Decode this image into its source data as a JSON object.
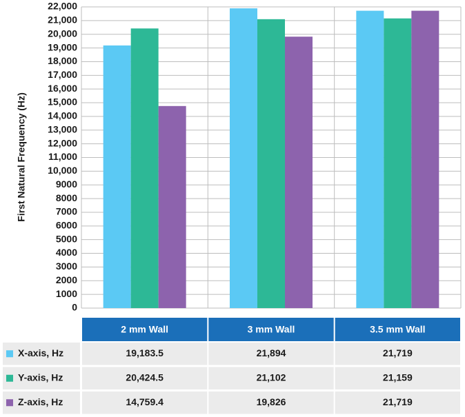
{
  "chart_data": {
    "type": "bar",
    "y_label": "First Natural Frequency (Hz)",
    "categories": [
      "2 mm Wall",
      "3 mm Wall",
      "3.5 mm Wall"
    ],
    "series": [
      {
        "name": "X-axis, Hz",
        "color": "#5bc9f4",
        "values": [
          19183.5,
          21894,
          21719
        ],
        "value_labels": [
          "19,183.5",
          "21,894",
          "21,719"
        ]
      },
      {
        "name": "Y-axis, Hz",
        "color": "#2db896",
        "values": [
          20424.5,
          21102,
          21159
        ],
        "value_labels": [
          "20,424.5",
          "21,102",
          "21,159"
        ]
      },
      {
        "name": "Z-axis, Hz",
        "color": "#8d63ad",
        "values": [
          14759.4,
          19826,
          21719
        ],
        "value_labels": [
          "14,759.4",
          "19,826",
          "21,719"
        ]
      }
    ],
    "ylim": [
      0,
      22000
    ],
    "yticks": [
      0,
      1000,
      2000,
      3000,
      4000,
      5000,
      6000,
      7000,
      8000,
      9000,
      {
        "value": 10000,
        "label": "10,000"
      },
      {
        "value": 11000,
        "label": "11,000"
      },
      {
        "value": 12000,
        "label": "12,000"
      },
      {
        "value": 13000,
        "label": "13,000"
      },
      {
        "value": 14000,
        "label": "14,000"
      },
      {
        "value": 15000,
        "label": "15,000"
      },
      {
        "value": 16000,
        "label": "16,000"
      },
      {
        "value": 17000,
        "label": "17,000"
      },
      {
        "value": 18000,
        "label": "18,000"
      },
      {
        "value": 19000,
        "label": "19,000"
      },
      {
        "value": 20000,
        "label": "20,000"
      },
      {
        "value": 21000,
        "label": "21,000"
      },
      {
        "value": 22000,
        "label": "22,000"
      }
    ],
    "grid": true
  }
}
